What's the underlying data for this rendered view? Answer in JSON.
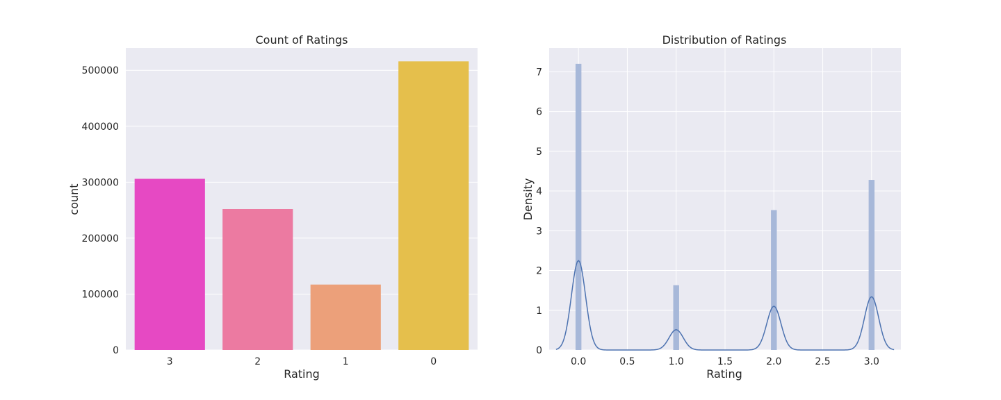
{
  "chart_data": [
    {
      "type": "bar",
      "title": "Count of Ratings",
      "xlabel": "Rating",
      "ylabel": "count",
      "categories": [
        "3",
        "2",
        "1",
        "0"
      ],
      "values": [
        306000,
        252000,
        117000,
        516000
      ],
      "colors": [
        "#e649c3",
        "#ec7aa1",
        "#eca07a",
        "#e5bf4c"
      ],
      "ylim": [
        0,
        540000
      ],
      "yticks": [
        0,
        100000,
        200000,
        300000,
        400000,
        500000
      ],
      "grid": true,
      "legend": "none"
    },
    {
      "type": "histogram",
      "title": "Distribution of Ratings",
      "xlabel": "Rating",
      "ylabel": "Density",
      "xlim": [
        -0.3,
        3.3
      ],
      "ylim": [
        0,
        7.6
      ],
      "xticks": [
        "0.0",
        "0.5",
        "1.0",
        "1.5",
        "2.0",
        "2.5",
        "3.0"
      ],
      "yticks": [
        "0",
        "1",
        "2",
        "3",
        "4",
        "5",
        "6",
        "7"
      ],
      "bar_color": "#a7b8d9",
      "line_color": "#4c72b0",
      "bars": [
        {
          "x": 0.0,
          "density": 7.2
        },
        {
          "x": 1.0,
          "density": 1.63
        },
        {
          "x": 2.0,
          "density": 3.52
        },
        {
          "x": 3.0,
          "density": 4.28
        }
      ],
      "kde": {
        "bandwidth": 0.0725,
        "peaks": [
          {
            "x": 0.0,
            "height": 2.25
          },
          {
            "x": 1.0,
            "height": 0.51
          },
          {
            "x": 2.0,
            "height": 1.1
          },
          {
            "x": 3.0,
            "height": 1.34
          }
        ],
        "x_range": [
          -0.23,
          3.23
        ]
      },
      "grid": true,
      "legend": "none"
    }
  ]
}
